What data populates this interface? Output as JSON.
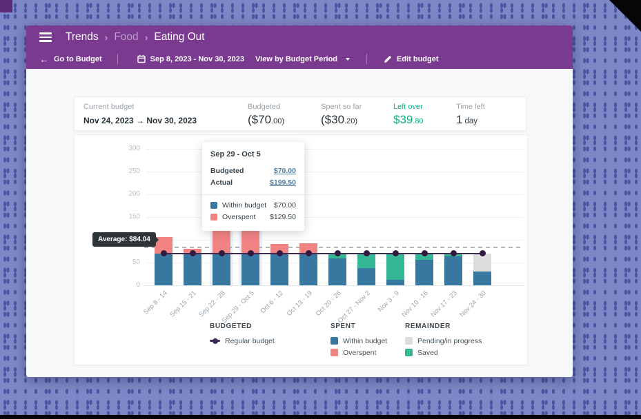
{
  "background": {
    "base_color": "#7e87c5",
    "dot_color": "#4c57a4",
    "corner_color": "#5c2c7a"
  },
  "header": {
    "accent": "#7a3a90",
    "breadcrumb": [
      {
        "label": "Trends"
      },
      {
        "label": "Food"
      },
      {
        "label": "Eating Out"
      }
    ],
    "toolbar": {
      "back_arrow": "←",
      "back_label": "Go to Budget",
      "date_range": "Sep 8, 2023 - Nov 30, 2023",
      "view_by_label": "View by Budget Period",
      "edit_label": "Edit budget"
    }
  },
  "summary": {
    "columns": [
      {
        "label": "Current budget",
        "value": "Nov 24, 2023 → Nov 30, 2023"
      },
      {
        "label": "Budgeted",
        "value_main": "($70",
        "value_small": ".00)"
      },
      {
        "label": "Spent so far",
        "value_main": "($30",
        "value_small": ".20)"
      },
      {
        "label": "Left over",
        "value_main": "$39",
        "value_small": ".80",
        "color": "#17b185"
      },
      {
        "label": "Time left",
        "value_main": "1",
        "value_small": "day"
      }
    ]
  },
  "chart_data": {
    "type": "bar",
    "stacked": true,
    "categories": [
      "Sep 8 - 14",
      "Sep 15 - 21",
      "Sep 22 - 28",
      "Sep 29 - Oct 5",
      "Oct 6 - 12",
      "Oct 13 - 19",
      "Oct 20 - 26",
      "Oct 27 - Nov 2",
      "Nov 3 - 9",
      "Nov 10 - 16",
      "Nov 17 - 23",
      "Nov 24 - 30"
    ],
    "series": [
      {
        "name": "Within budget",
        "color": "#3878a0",
        "values": [
          70,
          70,
          70,
          70,
          70,
          70,
          59,
          38,
          12,
          56,
          64,
          30.2
        ]
      },
      {
        "name": "Overspent",
        "color": "#f28383",
        "values": [
          36,
          10,
          90,
          129.5,
          21,
          23,
          0,
          0,
          0,
          0,
          0,
          0
        ]
      },
      {
        "name": "Saved",
        "color": "#35b795",
        "values": [
          0,
          0,
          0,
          0,
          0,
          0,
          11,
          32,
          58,
          14,
          6,
          0
        ]
      },
      {
        "name": "Pending/in progress",
        "color": "#dcdedd",
        "values": [
          0,
          0,
          0,
          0,
          0,
          0,
          0,
          0,
          0,
          0,
          0,
          39.8
        ]
      }
    ],
    "budget_line": {
      "name": "Regular budget",
      "value": 70,
      "color": "#3f2b56",
      "dot_color": "#31193f"
    },
    "average_line": {
      "label": "Average: $84.04",
      "value": 84.04
    },
    "y_ticks": [
      0,
      50,
      100,
      150,
      200,
      250,
      300
    ],
    "ylim": [
      0,
      300
    ],
    "grid": true,
    "highlight_indices": [
      2,
      3
    ],
    "legend_position": "bottom"
  },
  "tooltip": {
    "title": "Sep 29 - Oct 5",
    "rows": [
      {
        "label": "Budgeted",
        "value": "$70.00"
      },
      {
        "label": "Actual",
        "value": "$199.50"
      }
    ],
    "breakdown": [
      {
        "label": "Within budget",
        "value": "$70.00",
        "color": "#3878a0"
      },
      {
        "label": "Overspent",
        "value": "$129.50",
        "color": "#f28383"
      }
    ]
  },
  "legend": {
    "groups": [
      {
        "title": "BUDGETED",
        "items": [
          {
            "label": "Regular budget",
            "marker": "line-dot",
            "color": "#3f2b56"
          }
        ]
      },
      {
        "title": "SPENT",
        "items": [
          {
            "label": "Within budget",
            "marker": "square",
            "color": "#3878a0"
          },
          {
            "label": "Overspent",
            "marker": "square",
            "color": "#f28383"
          }
        ]
      },
      {
        "title": "REMAINDER",
        "items": [
          {
            "label": "Pending/in progress",
            "marker": "square",
            "color": "#dcdedd"
          },
          {
            "label": "Saved",
            "marker": "square",
            "color": "#35b795"
          }
        ]
      }
    ]
  }
}
